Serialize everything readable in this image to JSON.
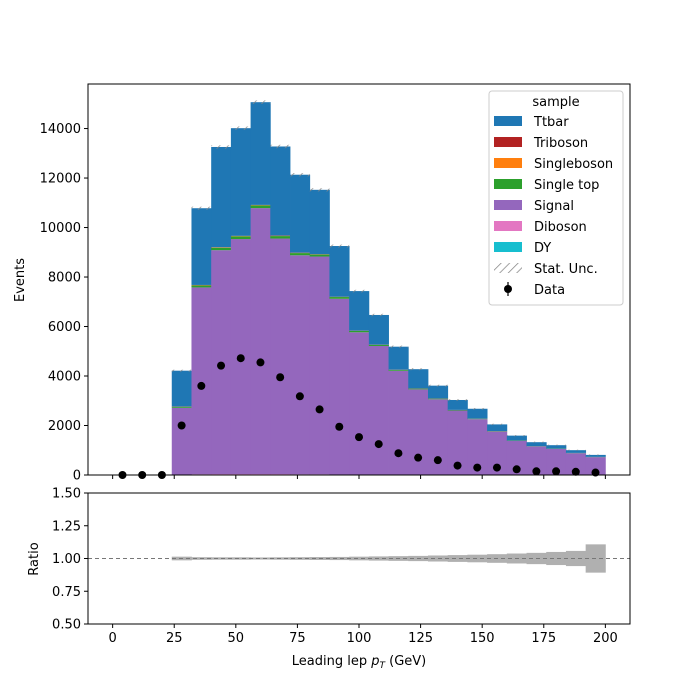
{
  "chart_data": [
    {
      "type": "bar",
      "stacked": true,
      "x_edges": [
        0,
        8,
        16,
        24,
        32,
        40,
        48,
        56,
        64,
        72,
        80,
        88,
        96,
        104,
        112,
        120,
        128,
        136,
        144,
        152,
        160,
        168,
        176,
        184,
        192,
        200
      ],
      "xlim": [
        -10,
        210
      ],
      "ylim": [
        0,
        15800
      ],
      "ylabel": "Events",
      "yticks": [
        0,
        2000,
        4000,
        6000,
        8000,
        10000,
        12000,
        14000
      ],
      "legend_title": "sample",
      "legend_position": "upper right",
      "series": [
        {
          "name": "Ttbar",
          "color": "#1f77b4",
          "values": [
            0,
            0,
            0,
            1450,
            3100,
            4050,
            4350,
            4150,
            3600,
            3150,
            2600,
            2050,
            1600,
            1200,
            930,
            780,
            520,
            400,
            400,
            270,
            200,
            160,
            140,
            110,
            80
          ]
        },
        {
          "name": "Triboson",
          "color": "#b22222",
          "values": [
            0,
            0,
            0,
            5,
            10,
            10,
            10,
            10,
            10,
            8,
            8,
            6,
            5,
            4,
            4,
            3,
            3,
            2,
            2,
            2,
            2,
            1,
            1,
            1,
            1
          ]
        },
        {
          "name": "Singleboson",
          "color": "#ff7f0e",
          "values": [
            0,
            0,
            0,
            5,
            10,
            10,
            10,
            10,
            10,
            8,
            8,
            6,
            5,
            4,
            4,
            3,
            3,
            2,
            2,
            2,
            2,
            1,
            1,
            1,
            1
          ]
        },
        {
          "name": "Single top",
          "color": "#2ca02c",
          "values": [
            0,
            0,
            0,
            40,
            80,
            100,
            110,
            110,
            100,
            90,
            80,
            70,
            55,
            45,
            35,
            30,
            25,
            20,
            17,
            15,
            12,
            10,
            10,
            8,
            7
          ]
        },
        {
          "name": "Signal",
          "color": "#9467bd",
          "values": [
            0,
            0,
            0,
            2700,
            7550,
            9050,
            9500,
            10750,
            9520,
            8850,
            8800,
            7100,
            5750,
            5200,
            4200,
            3450,
            3050,
            2600,
            2250,
            1750,
            1370,
            1150,
            1050,
            880,
            720
          ]
        },
        {
          "name": "Diboson",
          "color": "#e377c2",
          "values": [
            0,
            0,
            0,
            10,
            20,
            25,
            25,
            25,
            25,
            20,
            20,
            15,
            12,
            10,
            8,
            7,
            6,
            5,
            4,
            4,
            3,
            3,
            2,
            2,
            2
          ]
        },
        {
          "name": "DY",
          "color": "#17becf",
          "values": [
            0,
            0,
            0,
            5,
            10,
            10,
            10,
            10,
            10,
            8,
            8,
            6,
            5,
            4,
            4,
            3,
            3,
            2,
            2,
            2,
            2,
            1,
            1,
            1,
            1
          ]
        }
      ],
      "stat_unc_label": "Stat. Unc.",
      "data": {
        "name": "Data",
        "x": [
          4,
          12,
          20,
          28,
          36,
          44,
          52,
          60,
          68,
          76,
          84,
          92,
          100,
          108,
          116,
          124,
          132,
          140,
          148,
          156,
          164,
          172,
          180,
          188,
          196
        ],
        "y": [
          0,
          0,
          0,
          2000,
          3600,
          4420,
          4720,
          4550,
          3950,
          3180,
          2650,
          1950,
          1530,
          1250,
          880,
          700,
          600,
          380,
          300,
          300,
          230,
          150,
          150,
          130,
          100
        ]
      }
    },
    {
      "type": "area",
      "xlabel": "Leading lep p_T (GeV)",
      "xlabel_main": "Leading lep ",
      "xlabel_sym": "p",
      "xlabel_sub": "T",
      "xlabel_unit": " (GeV)",
      "ylabel": "Ratio",
      "ylim": [
        0.5,
        1.5
      ],
      "yticks": [
        "0.50",
        "0.75",
        "1.00",
        "1.25",
        "1.50"
      ],
      "xticks": [
        "0",
        "25",
        "50",
        "75",
        "100",
        "125",
        "150",
        "175",
        "200"
      ],
      "reference_line": 1.0,
      "unc_band_halfwidth": [
        0,
        0,
        0,
        0.014,
        0.01,
        0.009,
        0.009,
        0.008,
        0.009,
        0.01,
        0.011,
        0.012,
        0.014,
        0.016,
        0.018,
        0.02,
        0.023,
        0.026,
        0.029,
        0.033,
        0.038,
        0.043,
        0.05,
        0.058,
        0.108
      ]
    }
  ]
}
